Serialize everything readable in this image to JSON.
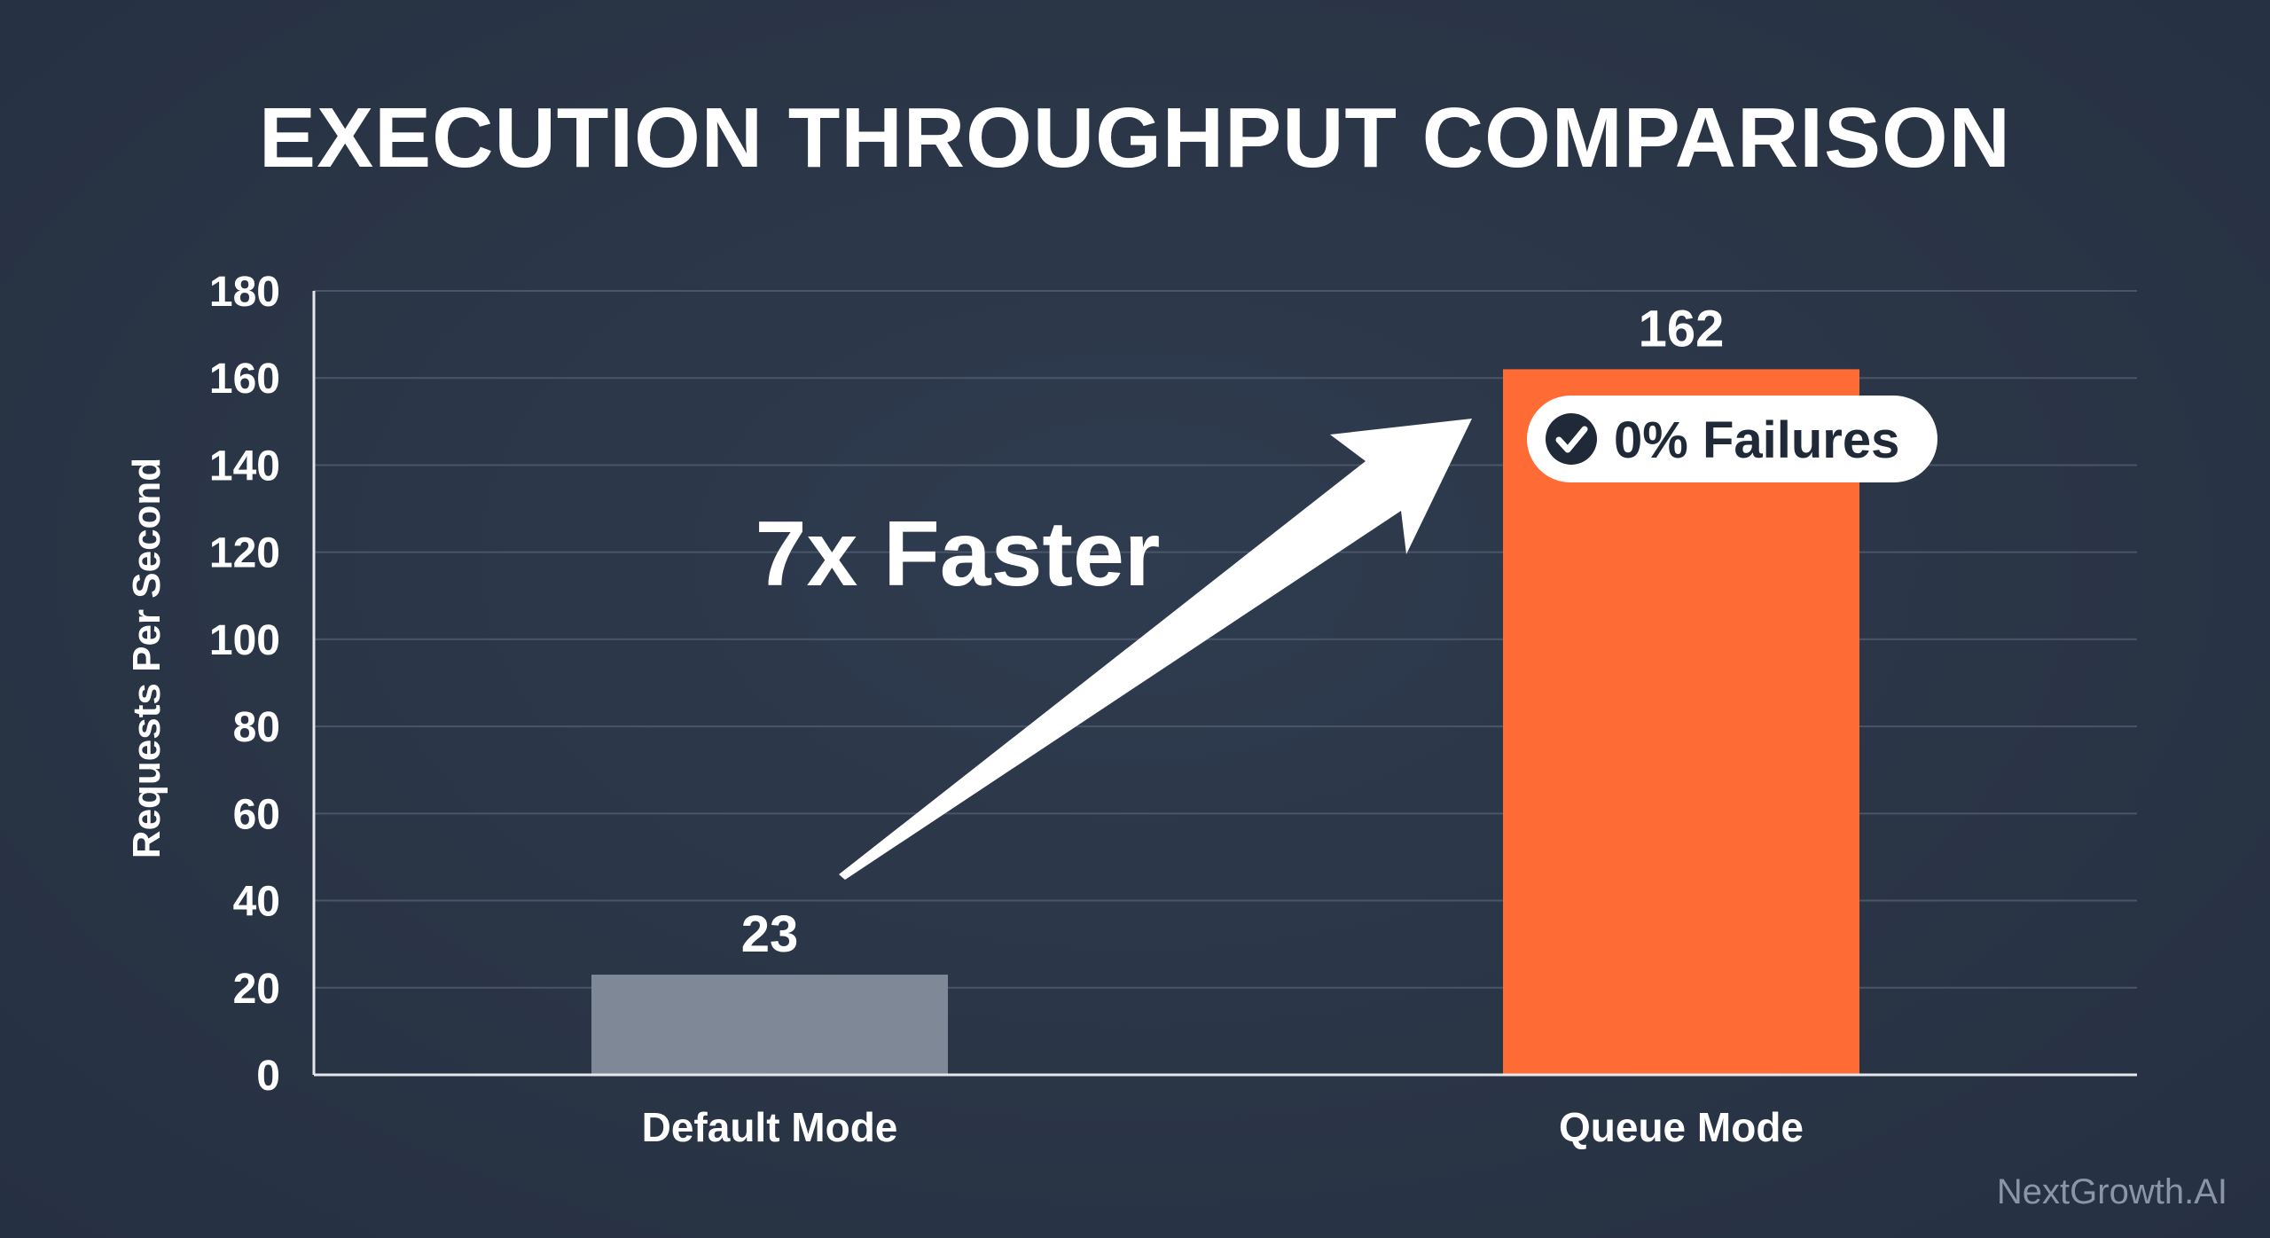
{
  "chart_data": {
    "type": "bar",
    "title": "EXECUTION THROUGHPUT COMPARISON",
    "ylabel": "Requests Per Second",
    "xlabel": "",
    "categories": [
      "Default Mode",
      "Queue Mode"
    ],
    "values": [
      23,
      162
    ],
    "bar_colors": [
      "#7f8896",
      "#ff6b35"
    ],
    "ylim": [
      0,
      180
    ],
    "yticks": [
      0,
      20,
      40,
      60,
      80,
      100,
      120,
      140,
      160,
      180
    ],
    "grid": true,
    "annotations": {
      "speedup_text": "7x Faster",
      "badge_text": "0% Failures",
      "badge_icon": "check-circle-icon"
    }
  },
  "watermark": "NextGrowth.AI",
  "colors": {
    "background": "#2a3546",
    "accent": "#ff6b35",
    "baseline_bar": "#7f8896",
    "text": "#ffffff"
  }
}
